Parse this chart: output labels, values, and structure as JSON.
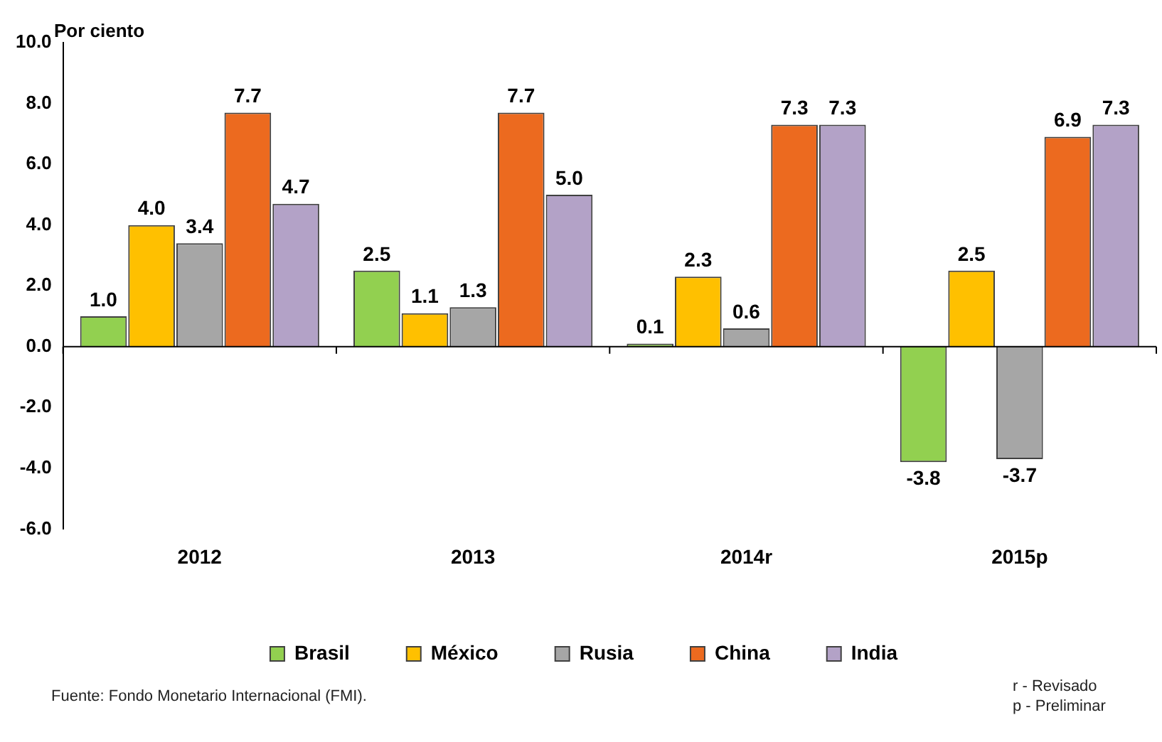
{
  "chart_data": {
    "type": "bar",
    "ylabel": "Por ciento",
    "categories": [
      "2012",
      "2013",
      "2014r",
      "2015p"
    ],
    "series": [
      {
        "name": "Brasil",
        "color": "#92d050",
        "values": [
          1.0,
          2.5,
          0.1,
          -3.8
        ],
        "value_labels": [
          "1.0",
          "2.5",
          "0.1",
          "-3.8"
        ]
      },
      {
        "name": "México",
        "color": "#ffc000",
        "values": [
          4.0,
          1.1,
          2.3,
          2.5
        ],
        "value_labels": [
          "4.0",
          "1.1",
          "2.3",
          "2.5"
        ]
      },
      {
        "name": "Rusia",
        "color": "#a6a6a6",
        "values": [
          3.4,
          1.3,
          0.6,
          -3.7
        ],
        "value_labels": [
          "3.4",
          "1.3",
          "0.6",
          "-3.7"
        ]
      },
      {
        "name": "China",
        "color": "#ec6a1f",
        "values": [
          7.7,
          7.7,
          7.3,
          6.9
        ],
        "value_labels": [
          "7.7",
          "7.7",
          "7.3",
          "6.9"
        ]
      },
      {
        "name": "India",
        "color": "#b3a2c7",
        "values": [
          4.7,
          5.0,
          7.3,
          7.3
        ],
        "value_labels": [
          "4.7",
          "5.0",
          "7.3",
          "7.3"
        ]
      }
    ],
    "ylim": [
      -6,
      10
    ],
    "yticks": [
      {
        "value": -6,
        "label": "-6.0"
      },
      {
        "value": -4,
        "label": "-4.0"
      },
      {
        "value": -2,
        "label": "-2.0"
      },
      {
        "value": 0,
        "label": "0.0"
      },
      {
        "value": 2,
        "label": "2.0"
      },
      {
        "value": 4,
        "label": "4.0"
      },
      {
        "value": 6,
        "label": "6.0"
      },
      {
        "value": 8,
        "label": "8.0"
      },
      {
        "value": 10,
        "label": "10.0"
      }
    ],
    "legend": "bottom",
    "annotations": [
      "Fuente: Fondo Monetario Internacional (FMI).",
      "r - Revisado",
      "p - Preliminar"
    ]
  }
}
